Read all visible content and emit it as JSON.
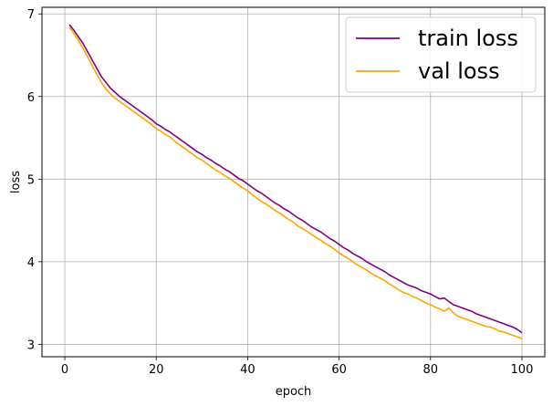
{
  "chart_data": {
    "type": "line",
    "title": "",
    "xlabel": "epoch",
    "ylabel": "loss",
    "xlim": [
      -5,
      105
    ],
    "ylim": [
      2.85,
      7.08
    ],
    "xticks": [
      0,
      20,
      40,
      60,
      80,
      100
    ],
    "yticks": [
      3,
      4,
      5,
      6,
      7
    ],
    "grid": true,
    "legend": "upper right",
    "series": [
      {
        "name": "train loss",
        "color": "#800080",
        "x": [
          1,
          2,
          3,
          4,
          5,
          6,
          7,
          8,
          9,
          10,
          11,
          12,
          13,
          14,
          15,
          16,
          17,
          18,
          19,
          20,
          21,
          22,
          23,
          24,
          25,
          26,
          27,
          28,
          29,
          30,
          31,
          32,
          33,
          34,
          35,
          36,
          37,
          38,
          39,
          40,
          41,
          42,
          43,
          44,
          45,
          46,
          47,
          48,
          49,
          50,
          51,
          52,
          53,
          54,
          55,
          56,
          57,
          58,
          59,
          60,
          61,
          62,
          63,
          64,
          65,
          66,
          67,
          68,
          69,
          70,
          71,
          72,
          73,
          74,
          75,
          76,
          77,
          78,
          79,
          80,
          81,
          82,
          83,
          84,
          85,
          86,
          87,
          88,
          89,
          90,
          91,
          92,
          93,
          94,
          95,
          96,
          97,
          98,
          99,
          100
        ],
        "y": [
          6.87,
          6.8,
          6.72,
          6.64,
          6.54,
          6.44,
          6.34,
          6.24,
          6.17,
          6.1,
          6.05,
          6.0,
          5.96,
          5.92,
          5.88,
          5.84,
          5.8,
          5.76,
          5.72,
          5.67,
          5.64,
          5.6,
          5.57,
          5.53,
          5.49,
          5.45,
          5.41,
          5.37,
          5.33,
          5.3,
          5.26,
          5.23,
          5.19,
          5.16,
          5.12,
          5.09,
          5.05,
          5.01,
          4.98,
          4.94,
          4.9,
          4.86,
          4.83,
          4.79,
          4.75,
          4.71,
          4.68,
          4.64,
          4.61,
          4.57,
          4.53,
          4.5,
          4.46,
          4.42,
          4.39,
          4.36,
          4.32,
          4.28,
          4.25,
          4.21,
          4.17,
          4.14,
          4.1,
          4.07,
          4.04,
          4.0,
          3.97,
          3.94,
          3.91,
          3.88,
          3.84,
          3.81,
          3.78,
          3.75,
          3.72,
          3.7,
          3.68,
          3.65,
          3.63,
          3.61,
          3.58,
          3.55,
          3.56,
          3.52,
          3.48,
          3.46,
          3.44,
          3.42,
          3.4,
          3.37,
          3.35,
          3.33,
          3.31,
          3.29,
          3.27,
          3.25,
          3.23,
          3.21,
          3.18,
          3.14
        ]
      },
      {
        "name": "val loss",
        "color": "#ffa500",
        "x": [
          1,
          2,
          3,
          4,
          5,
          6,
          7,
          8,
          9,
          10,
          11,
          12,
          13,
          14,
          15,
          16,
          17,
          18,
          19,
          20,
          21,
          22,
          23,
          24,
          25,
          26,
          27,
          28,
          29,
          30,
          31,
          32,
          33,
          34,
          35,
          36,
          37,
          38,
          39,
          40,
          41,
          42,
          43,
          44,
          45,
          46,
          47,
          48,
          49,
          50,
          51,
          52,
          53,
          54,
          55,
          56,
          57,
          58,
          59,
          60,
          61,
          62,
          63,
          64,
          65,
          66,
          67,
          68,
          69,
          70,
          71,
          72,
          73,
          74,
          75,
          76,
          77,
          78,
          79,
          80,
          81,
          82,
          83,
          84,
          85,
          86,
          87,
          88,
          89,
          90,
          91,
          92,
          93,
          94,
          95,
          96,
          97,
          98,
          99,
          100
        ],
        "y": [
          6.84,
          6.76,
          6.68,
          6.58,
          6.48,
          6.37,
          6.27,
          6.17,
          6.09,
          6.03,
          5.98,
          5.94,
          5.9,
          5.86,
          5.82,
          5.78,
          5.74,
          5.7,
          5.66,
          5.61,
          5.58,
          5.54,
          5.51,
          5.46,
          5.42,
          5.38,
          5.34,
          5.3,
          5.26,
          5.23,
          5.19,
          5.15,
          5.11,
          5.08,
          5.04,
          5.01,
          4.97,
          4.93,
          4.89,
          4.86,
          4.81,
          4.77,
          4.73,
          4.7,
          4.66,
          4.62,
          4.59,
          4.55,
          4.51,
          4.48,
          4.43,
          4.4,
          4.37,
          4.33,
          4.29,
          4.26,
          4.22,
          4.19,
          4.15,
          4.11,
          4.07,
          4.04,
          4.0,
          3.96,
          3.93,
          3.9,
          3.86,
          3.83,
          3.8,
          3.77,
          3.73,
          3.7,
          3.66,
          3.63,
          3.61,
          3.58,
          3.56,
          3.53,
          3.5,
          3.48,
          3.45,
          3.43,
          3.4,
          3.44,
          3.38,
          3.34,
          3.32,
          3.3,
          3.28,
          3.26,
          3.24,
          3.22,
          3.21,
          3.19,
          3.16,
          3.15,
          3.13,
          3.11,
          3.09,
          3.07
        ]
      }
    ]
  }
}
